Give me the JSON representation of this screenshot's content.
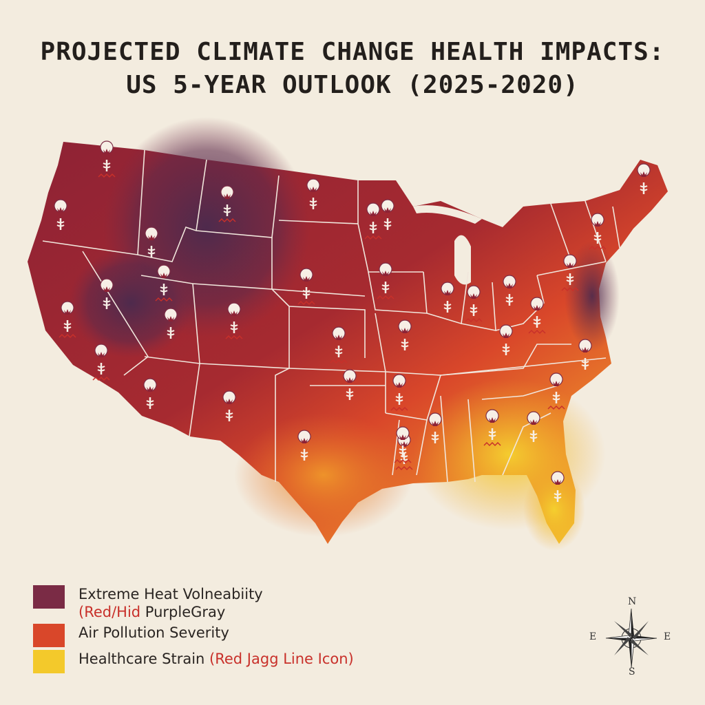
{
  "title": {
    "line1": "PROJECTED CLIMATE CHANGE HEALTH IMPACTS:",
    "line2": "US 5-YEAR OUTLOOK (2025-2020)"
  },
  "colors": {
    "background": "#f3ecdf",
    "heat_vulnerability": "#7a2b45",
    "deep_purple": "#4a2a4e",
    "crimson": "#9e2433",
    "air_pollution": "#d9472a",
    "orange": "#e8792a",
    "healthcare_strain": "#f3c92b",
    "accent_red": "#c8302a",
    "state_border": "#f1e6dc"
  },
  "legend": {
    "items": [
      {
        "line1": "Extreme Heat Volneabiity",
        "line2_accent": "(Red/Hid",
        "line2_rest": " PurpleGray",
        "color": "#7a2b45"
      },
      {
        "line1": "Air Pollution Severity",
        "color": "#d9472a"
      },
      {
        "line1_plain": "Healthcare Strain ",
        "line1_accent": "(Red Jagg Line Icon)",
        "color": "#f3c92b"
      }
    ]
  },
  "compass": {
    "n": "N",
    "s": "S",
    "e": "E",
    "w": "E"
  },
  "markers": {
    "icon_name": "medical-caduceus-icon",
    "healthcare_strain_icon": "red-jagged-line-icon",
    "count": 38
  }
}
